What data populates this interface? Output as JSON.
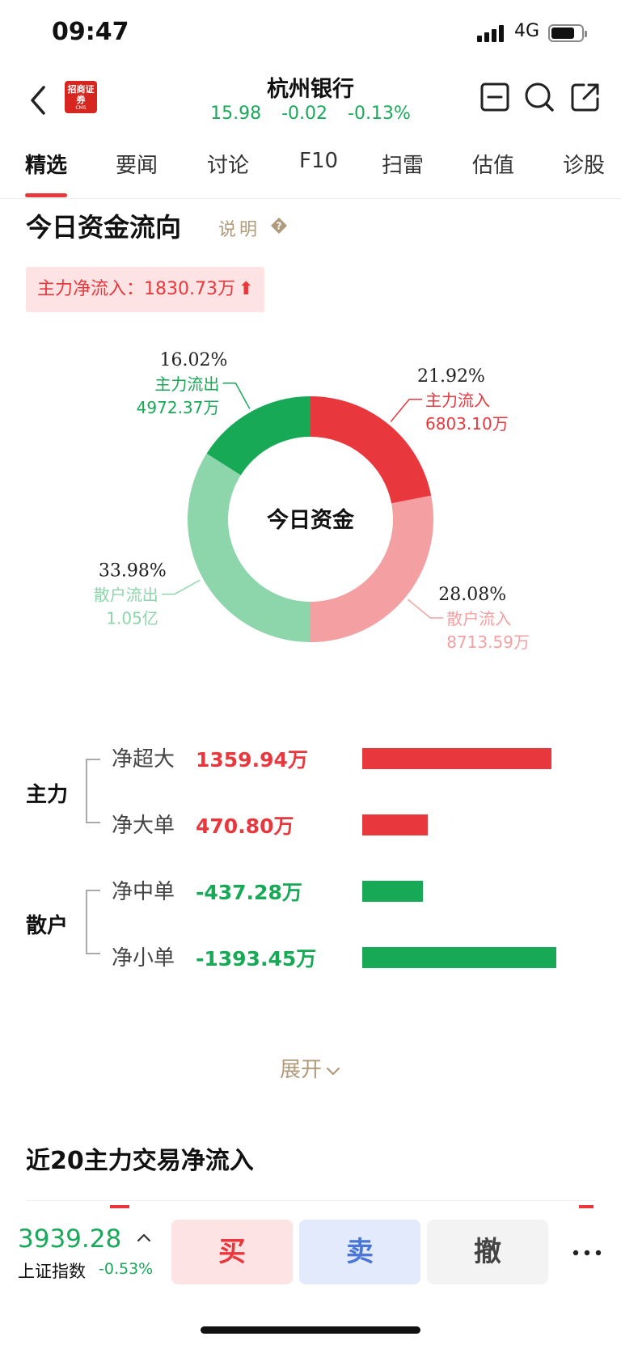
{
  "status_bar": {
    "time": "09:47",
    "network": "4G"
  },
  "header": {
    "logo_text": "招商证券",
    "logo_sub": "CMS",
    "stock_name": "杭州银行",
    "price": "15.98",
    "change": "-0.02",
    "change_pct": "-0.13%"
  },
  "tabs": [
    {
      "label": "精选",
      "active": true
    },
    {
      "label": "要闻"
    },
    {
      "label": "讨论"
    },
    {
      "label": "F10"
    },
    {
      "label": "扫雷"
    },
    {
      "label": "估值"
    },
    {
      "label": "诊股"
    }
  ],
  "section": {
    "title": "今日资金流向",
    "explain": "说明",
    "net_inflow_label": "主力净流入：1830.73万",
    "net_inflow_arrow": "⬆"
  },
  "chart_data": {
    "type": "pie",
    "center_label": "今日资金",
    "slices": [
      {
        "name": "主力流入",
        "percent": 21.92,
        "percent_label": "21.92%",
        "amount": "6803.10万",
        "color": "#e8383d"
      },
      {
        "name": "散户流入",
        "percent": 28.08,
        "percent_label": "28.08%",
        "amount": "8713.59万",
        "color": "#f4a0a2"
      },
      {
        "name": "散户流出",
        "percent": 33.98,
        "percent_label": "33.98%",
        "amount": "1.05亿",
        "color": "#8dd5ab"
      },
      {
        "name": "主力流出",
        "percent": 16.02,
        "percent_label": "16.02%",
        "amount": "4972.37万",
        "color": "#18a957"
      }
    ]
  },
  "flows": {
    "groups": [
      {
        "label": "主力"
      },
      {
        "label": "散户"
      }
    ],
    "rows": [
      {
        "label": "净超大",
        "value": "1359.94万",
        "amount": 1359.94,
        "color": "#e8383d"
      },
      {
        "label": "净大单",
        "value": "470.80万",
        "amount": 470.8,
        "color": "#e8383d"
      },
      {
        "label": "净中单",
        "value": "-437.28万",
        "amount": -437.28,
        "color": "#18a957"
      },
      {
        "label": "净小单",
        "value": "-1393.45万",
        "amount": -1393.45,
        "color": "#18a957"
      }
    ]
  },
  "expand_label": "展开",
  "section2": {
    "title": "近20主力交易净流入"
  },
  "bottom_bar": {
    "index_value": "3939.28",
    "index_name": "上证指数",
    "index_change": "-0.53%",
    "buy_label": "买",
    "sell_label": "卖",
    "cancel_label": "撤"
  }
}
